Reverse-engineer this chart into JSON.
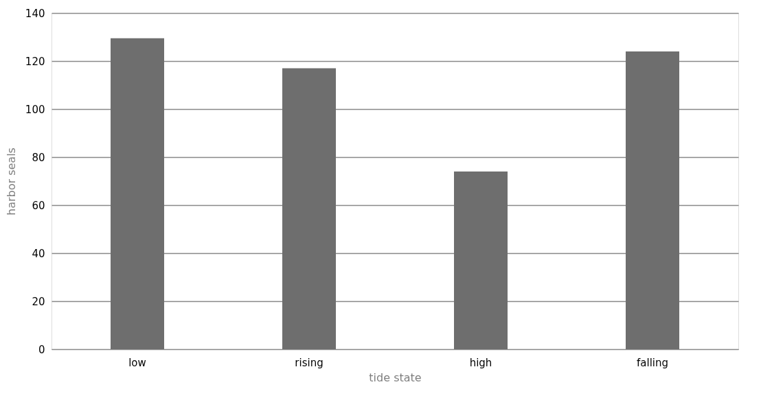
{
  "chart_data": {
    "type": "bar",
    "xlabel": "tide state",
    "ylabel": "harbor seals",
    "categories": [
      "low",
      "rising",
      "high",
      "falling"
    ],
    "values": [
      129.5,
      117,
      74,
      124
    ],
    "color": "#6e6e6e",
    "ylim": [
      0,
      140
    ],
    "yticks": [
      0,
      20,
      40,
      60,
      80,
      100,
      120,
      140
    ],
    "grid": "y"
  }
}
